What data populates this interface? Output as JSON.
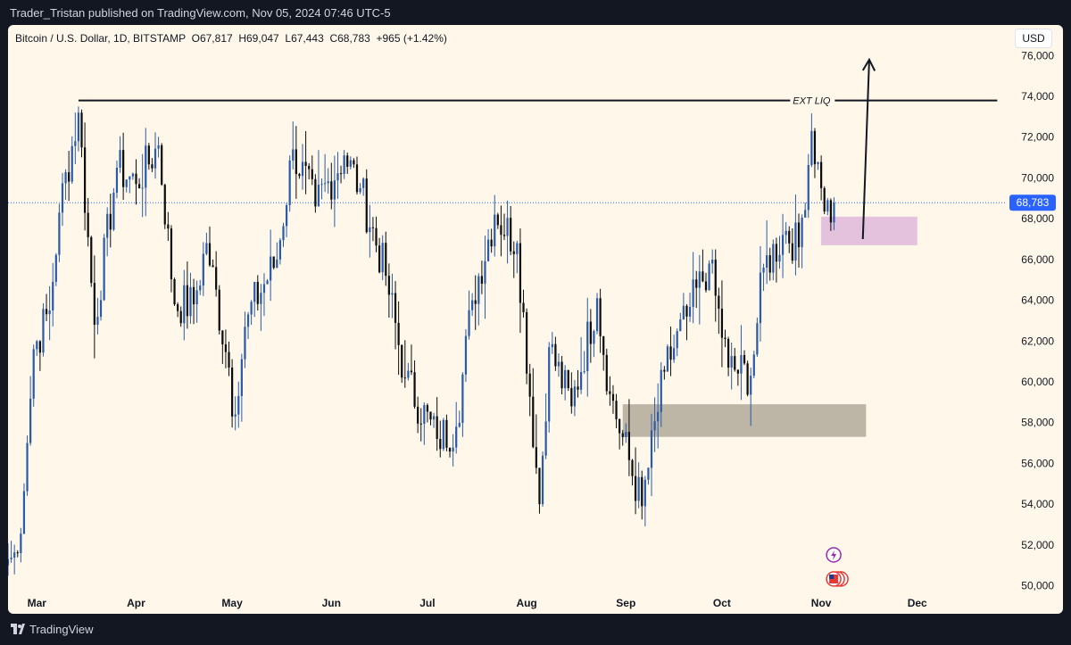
{
  "header": {
    "published_text": "Trader_Tristan published on TradingView.com, Nov 05, 2024 07:46 UTC-5"
  },
  "legend": {
    "symbol": "Bitcoin / U.S. Dollar, 1D, BITSTAMP",
    "open": "O67,817",
    "high": "H69,047",
    "low": "L67,443",
    "close": "C68,783",
    "change": "+965 (+1.42%)"
  },
  "currency_button": "USD",
  "footer": {
    "brand": "TradingView"
  },
  "chart_data": {
    "type": "candlestick",
    "title": "Bitcoin / U.S. Dollar, 1D, BITSTAMP",
    "xlabel": "",
    "ylabel": "",
    "y_ticks": [
      50000,
      52000,
      54000,
      56000,
      58000,
      60000,
      62000,
      64000,
      66000,
      68000,
      70000,
      72000,
      74000,
      76000
    ],
    "y_tick_labels": [
      "50,000",
      "52,000",
      "54,000",
      "56,000",
      "58,000",
      "60,000",
      "62,000",
      "64,000",
      "66,000",
      "68,000",
      "70,000",
      "72,000",
      "74,000",
      "76,000"
    ],
    "ylim": [
      49500,
      77500
    ],
    "x_ticks": [
      {
        "label": "Mar",
        "date": "2024-03-01"
      },
      {
        "label": "Apr",
        "date": "2024-04-01"
      },
      {
        "label": "May",
        "date": "2024-05-01"
      },
      {
        "label": "Jun",
        "date": "2024-06-01"
      },
      {
        "label": "Jul",
        "date": "2024-07-01"
      },
      {
        "label": "Aug",
        "date": "2024-08-01"
      },
      {
        "label": "Sep",
        "date": "2024-09-01"
      },
      {
        "label": "Oct",
        "date": "2024-10-01"
      },
      {
        "label": "Nov",
        "date": "2024-11-01"
      },
      {
        "label": "Dec",
        "date": "2024-12-01"
      }
    ],
    "xlim": [
      "2024-02-21",
      "2024-12-27"
    ],
    "current_price": {
      "value": 68783,
      "label": "68,783"
    },
    "annotations": {
      "ext_liq_line": {
        "value": 73800,
        "start": "2024-03-14",
        "end": "2024-12-26",
        "label": "EXT LIQ"
      },
      "pink_zone": {
        "low": 66700,
        "high": 68100,
        "start": "2024-11-01",
        "end": "2024-12-01",
        "color": "#e4c1dc"
      },
      "gray_zone": {
        "low": 57300,
        "high": 58900,
        "start": "2024-08-31",
        "end": "2024-11-15",
        "color": "#bdb5a6"
      },
      "arrow": {
        "from": {
          "date": "2024-11-14",
          "value": 67000
        },
        "to": {
          "date": "2024-11-16",
          "value": 75800
        }
      }
    },
    "colors": {
      "up": "#2a5aa8",
      "down": "#0c0c0c",
      "price_label": "#2962ff"
    },
    "anchors": [
      [
        "2024-02-21",
        51300
      ],
      [
        "2024-02-24",
        51600
      ],
      [
        "2024-02-27",
        57000
      ],
      [
        "2024-02-29",
        61600
      ],
      [
        "2024-03-05",
        63500
      ],
      [
        "2024-03-08",
        68300
      ],
      [
        "2024-03-14",
        73200
      ],
      [
        "2024-03-19",
        62800
      ],
      [
        "2024-03-26",
        70500
      ],
      [
        "2024-04-01",
        69700
      ],
      [
        "2024-04-08",
        71600
      ],
      [
        "2024-04-13",
        63800
      ],
      [
        "2024-04-19",
        63800
      ],
      [
        "2024-04-23",
        66800
      ],
      [
        "2024-04-30",
        60700
      ],
      [
        "2024-05-01",
        58300
      ],
      [
        "2024-05-06",
        63300
      ],
      [
        "2024-05-15",
        66000
      ],
      [
        "2024-05-20",
        71400
      ],
      [
        "2024-05-27",
        68600
      ],
      [
        "2024-06-05",
        71100
      ],
      [
        "2024-06-10",
        69500
      ],
      [
        "2024-06-18",
        65200
      ],
      [
        "2024-06-24",
        60200
      ],
      [
        "2024-07-04",
        57200
      ],
      [
        "2024-07-10",
        57800
      ],
      [
        "2024-07-15",
        64000
      ],
      [
        "2024-07-22",
        68200
      ],
      [
        "2024-07-29",
        66800
      ],
      [
        "2024-08-05",
        54000
      ],
      [
        "2024-08-08",
        61700
      ],
      [
        "2024-08-15",
        58800
      ],
      [
        "2024-08-23",
        64100
      ],
      [
        "2024-08-27",
        59400
      ],
      [
        "2024-09-06",
        53900
      ],
      [
        "2024-09-13",
        60500
      ],
      [
        "2024-09-20",
        63200
      ],
      [
        "2024-09-27",
        65800
      ],
      [
        "2024-10-03",
        60700
      ],
      [
        "2024-10-10",
        60300
      ],
      [
        "2024-10-14",
        65600
      ],
      [
        "2024-10-21",
        67400
      ],
      [
        "2024-10-25",
        66600
      ],
      [
        "2024-10-29",
        72300
      ],
      [
        "2024-11-01",
        69500
      ],
      [
        "2024-11-04",
        67817
      ],
      [
        "2024-11-05",
        68783
      ]
    ],
    "last_candle": {
      "date": "2024-11-05",
      "open": 67817,
      "high": 69047,
      "low": 67443,
      "close": 68783
    }
  }
}
